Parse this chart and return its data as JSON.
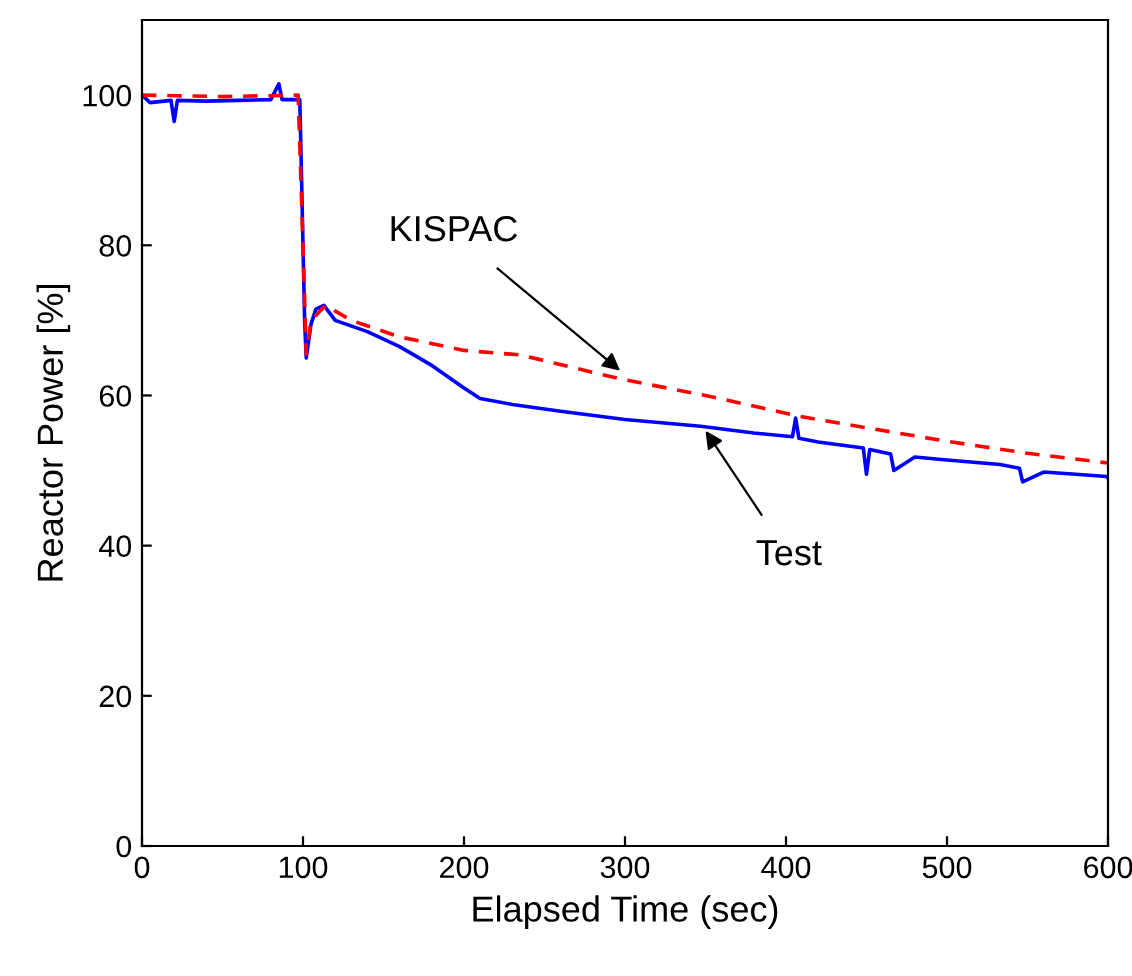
{
  "chart_data": {
    "type": "line",
    "xlabel": "Elapsed Time (sec)",
    "ylabel": "Reactor Power [%]",
    "xlim": [
      0,
      600
    ],
    "ylim": [
      0,
      110
    ],
    "xticks": [
      0,
      100,
      200,
      300,
      400,
      500,
      600
    ],
    "yticks": [
      0,
      20,
      40,
      60,
      80,
      100
    ],
    "grid": false,
    "legend": false,
    "series": [
      {
        "color": "#0000ff",
        "line_style": "solid",
        "x": [
          0,
          5,
          18,
          20,
          22,
          40,
          60,
          80,
          85,
          87,
          98,
          99,
          101,
          102,
          105,
          108,
          113,
          120,
          140,
          160,
          180,
          200,
          210,
          230,
          260,
          300,
          347,
          380,
          404,
          406,
          408,
          420,
          448,
          450,
          452,
          465,
          467,
          480,
          500,
          533,
          545,
          547,
          560,
          580,
          599,
          600
        ],
        "values": [
          100,
          99,
          99.3,
          96.5,
          99.3,
          99.2,
          99.3,
          99.4,
          101.5,
          99.4,
          99.4,
          90,
          70,
          65,
          69.5,
          71.5,
          72,
          70,
          68.5,
          66.5,
          64,
          61,
          59.6,
          58.8,
          57.9,
          56.8,
          55.9,
          55,
          54.5,
          57,
          54.3,
          53.8,
          53,
          49.5,
          52.8,
          52.2,
          50,
          51.8,
          51.4,
          50.8,
          50.3,
          48.5,
          49.8,
          49.5,
          49.2,
          49
        ]
      },
      {
        "color": "#ff0000",
        "line_style": "dashed",
        "x": [
          0,
          50,
          97,
          100,
          102,
          105,
          114,
          130,
          160,
          200,
          235,
          297,
          350,
          409,
          450,
          500,
          550,
          600
        ],
        "values": [
          100,
          99.8,
          100,
          80,
          65.5,
          70,
          72,
          70,
          67.8,
          66,
          65.4,
          62.2,
          60,
          57.2,
          55.7,
          53.9,
          52.3,
          51
        ]
      }
    ],
    "annotations": [
      {
        "text": "KISPAC",
        "x": 297,
        "y": 63.3
      },
      {
        "text": "Test",
        "x": 350,
        "y": 55.3
      }
    ]
  }
}
